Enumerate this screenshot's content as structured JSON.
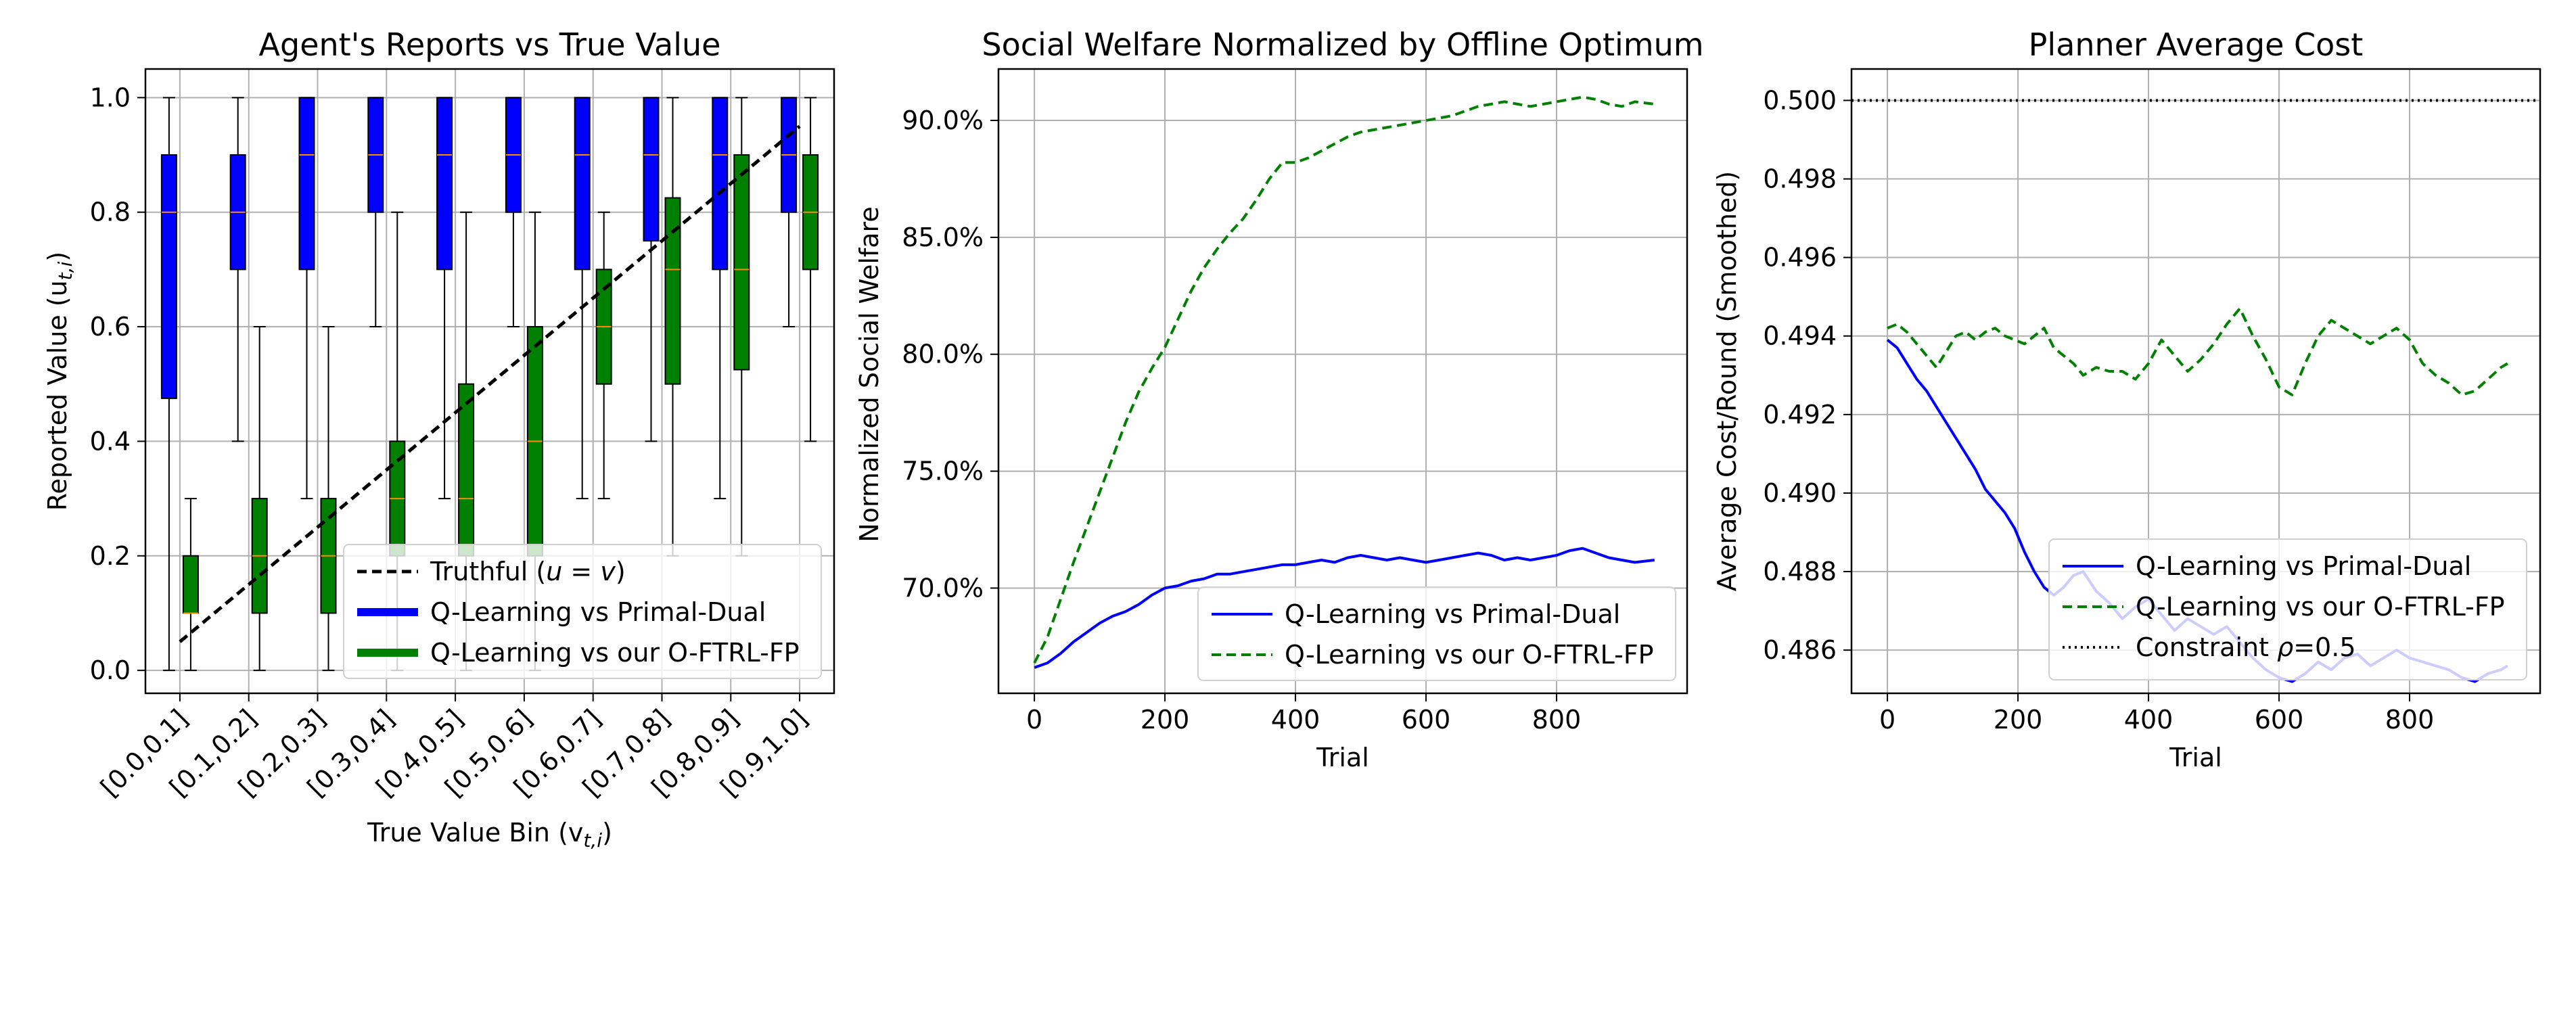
{
  "colors": {
    "blue": "#0000ff",
    "green": "#008000",
    "median": "#ff8c00",
    "truthful": "#000000",
    "grid": "#b0b0b0"
  },
  "chart_data": [
    {
      "type": "box",
      "title": "Agent's Reports vs True Value",
      "xlabel": "True Value Bin (v",
      "xlabel_sub": "t,i",
      "xlabel_end": ")",
      "ylabel": "Reported Value (u",
      "ylabel_sub": "t,i",
      "ylabel_end": ")",
      "ylim": [
        -0.04,
        1.05
      ],
      "yticks": [
        0.0,
        0.2,
        0.4,
        0.6,
        0.8,
        1.0
      ],
      "ytick_labels": [
        "0.0",
        "0.2",
        "0.4",
        "0.6",
        "0.8",
        "1.0"
      ],
      "categories": [
        "[0.0,0.1]",
        "[0.1,0.2]",
        "[0.2,0.3]",
        "[0.3,0.4]",
        "[0.4,0.5]",
        "[0.5,0.6]",
        "[0.6,0.7]",
        "[0.7,0.8]",
        "[0.8,0.9]",
        "[0.9,1.0]"
      ],
      "grid": true,
      "legend_position": "lower right",
      "legend": [
        {
          "label": "Truthful (",
          "label_math": "u = v",
          "label_end": ")",
          "style": "dashed-black"
        },
        {
          "label": "Q-Learning vs Primal-Dual",
          "style": "solid-blue"
        },
        {
          "label": "Q-Learning vs our O-FTRL-FP",
          "style": "solid-green"
        }
      ],
      "truthful_line": {
        "x": [
          0.05,
          0.95
        ],
        "y": [
          0.05,
          0.95
        ]
      },
      "series": [
        {
          "name": "Q-Learning vs Primal-Dual",
          "color": "#0000ff",
          "boxes": [
            {
              "whislo": 0.0,
              "q1": 0.475,
              "med": 0.8,
              "q3": 0.9,
              "whishi": 1.0
            },
            {
              "whislo": 0.4,
              "q1": 0.7,
              "med": 0.8,
              "q3": 0.9,
              "whishi": 1.0
            },
            {
              "whislo": 0.3,
              "q1": 0.7,
              "med": 0.9,
              "q3": 1.0,
              "whishi": 1.0
            },
            {
              "whislo": 0.6,
              "q1": 0.8,
              "med": 0.9,
              "q3": 1.0,
              "whishi": 1.0
            },
            {
              "whislo": 0.3,
              "q1": 0.7,
              "med": 0.9,
              "q3": 1.0,
              "whishi": 1.0
            },
            {
              "whislo": 0.6,
              "q1": 0.8,
              "med": 0.9,
              "q3": 1.0,
              "whishi": 1.0
            },
            {
              "whislo": 0.3,
              "q1": 0.7,
              "med": 0.9,
              "q3": 1.0,
              "whishi": 1.0
            },
            {
              "whislo": 0.4,
              "q1": 0.75,
              "med": 0.9,
              "q3": 1.0,
              "whishi": 1.0
            },
            {
              "whislo": 0.3,
              "q1": 0.7,
              "med": 0.9,
              "q3": 1.0,
              "whishi": 1.0
            },
            {
              "whislo": 0.6,
              "q1": 0.8,
              "med": 0.9,
              "q3": 1.0,
              "whishi": 1.0
            }
          ]
        },
        {
          "name": "Q-Learning vs our O-FTRL-FP",
          "color": "#008000",
          "boxes": [
            {
              "whislo": 0.0,
              "q1": 0.1,
              "med": 0.1,
              "q3": 0.2,
              "whishi": 0.3
            },
            {
              "whislo": 0.0,
              "q1": 0.1,
              "med": 0.2,
              "q3": 0.3,
              "whishi": 0.6
            },
            {
              "whislo": 0.0,
              "q1": 0.1,
              "med": 0.2,
              "q3": 0.3,
              "whishi": 0.6
            },
            {
              "whislo": 0.0,
              "q1": 0.2,
              "med": 0.3,
              "q3": 0.4,
              "whishi": 0.8
            },
            {
              "whislo": 0.0,
              "q1": 0.2,
              "med": 0.3,
              "q3": 0.5,
              "whishi": 0.8
            },
            {
              "whislo": 0.0,
              "q1": 0.2,
              "med": 0.4,
              "q3": 0.6,
              "whishi": 0.8
            },
            {
              "whislo": 0.3,
              "q1": 0.5,
              "med": 0.6,
              "q3": 0.7,
              "whishi": 0.8
            },
            {
              "whislo": 0.2,
              "q1": 0.5,
              "med": 0.7,
              "q3": 0.825,
              "whishi": 1.0
            },
            {
              "whislo": 0.2,
              "q1": 0.525,
              "med": 0.7,
              "q3": 0.9,
              "whishi": 1.0
            },
            {
              "whislo": 0.4,
              "q1": 0.7,
              "med": 0.8,
              "q3": 0.9,
              "whishi": 1.0
            }
          ]
        }
      ]
    },
    {
      "type": "line",
      "title": "Social Welfare Normalized by Offline Optimum",
      "xlabel": "Trial",
      "ylabel": "Normalized Social Welfare",
      "xlim": [
        -55,
        1000
      ],
      "ylim": [
        0.655,
        0.922
      ],
      "xticks": [
        0,
        200,
        400,
        600,
        800
      ],
      "yticks": [
        0.7,
        0.75,
        0.8,
        0.85,
        0.9
      ],
      "ytick_labels": [
        "70.0%",
        "75.0%",
        "80.0%",
        "85.0%",
        "90.0%"
      ],
      "grid": true,
      "legend_position": "lower right",
      "series": [
        {
          "name": "Q-Learning vs Primal-Dual",
          "style": "solid",
          "color": "#0000ff",
          "x": [
            0,
            20,
            40,
            60,
            80,
            100,
            120,
            140,
            160,
            180,
            200,
            220,
            240,
            260,
            280,
            300,
            320,
            340,
            360,
            380,
            400,
            420,
            440,
            460,
            480,
            500,
            520,
            540,
            560,
            580,
            600,
            620,
            640,
            660,
            680,
            700,
            720,
            740,
            760,
            780,
            800,
            820,
            840,
            860,
            880,
            900,
            920,
            950
          ],
          "y": [
            0.666,
            0.668,
            0.672,
            0.677,
            0.681,
            0.685,
            0.688,
            0.69,
            0.693,
            0.697,
            0.7,
            0.701,
            0.703,
            0.704,
            0.706,
            0.706,
            0.707,
            0.708,
            0.709,
            0.71,
            0.71,
            0.711,
            0.712,
            0.711,
            0.713,
            0.714,
            0.713,
            0.712,
            0.713,
            0.712,
            0.711,
            0.712,
            0.713,
            0.714,
            0.715,
            0.714,
            0.712,
            0.713,
            0.712,
            0.713,
            0.714,
            0.716,
            0.717,
            0.715,
            0.713,
            0.712,
            0.711,
            0.712
          ]
        },
        {
          "name": "Q-Learning vs our O-FTRL-FP",
          "style": "dashed",
          "color": "#008000",
          "x": [
            0,
            20,
            40,
            60,
            80,
            100,
            120,
            140,
            160,
            180,
            200,
            220,
            240,
            260,
            280,
            300,
            320,
            340,
            360,
            380,
            400,
            420,
            440,
            460,
            480,
            500,
            520,
            540,
            560,
            580,
            600,
            620,
            640,
            660,
            680,
            700,
            720,
            740,
            760,
            780,
            800,
            820,
            840,
            860,
            880,
            900,
            920,
            950
          ],
          "y": [
            0.668,
            0.679,
            0.695,
            0.711,
            0.726,
            0.741,
            0.756,
            0.771,
            0.784,
            0.794,
            0.803,
            0.815,
            0.827,
            0.837,
            0.845,
            0.852,
            0.858,
            0.866,
            0.875,
            0.882,
            0.882,
            0.884,
            0.887,
            0.89,
            0.893,
            0.895,
            0.896,
            0.897,
            0.898,
            0.899,
            0.9,
            0.901,
            0.902,
            0.904,
            0.906,
            0.907,
            0.908,
            0.907,
            0.906,
            0.907,
            0.908,
            0.909,
            0.91,
            0.909,
            0.907,
            0.906,
            0.908,
            0.907
          ]
        }
      ]
    },
    {
      "type": "line",
      "title": "Planner Average Cost",
      "xlabel": "Trial",
      "ylabel": "Average Cost/Round (Smoothed)",
      "xlim": [
        -55,
        1000
      ],
      "ylim": [
        0.4849,
        0.5008
      ],
      "xticks": [
        0,
        200,
        400,
        600,
        800
      ],
      "yticks": [
        0.486,
        0.488,
        0.49,
        0.492,
        0.494,
        0.496,
        0.498,
        0.5
      ],
      "ytick_labels": [
        "0.486",
        "0.488",
        "0.490",
        "0.492",
        "0.494",
        "0.496",
        "0.498",
        "0.500"
      ],
      "grid": true,
      "legend_position": "lower right",
      "series": [
        {
          "name": "Q-Learning vs Primal-Dual",
          "style": "solid",
          "color": "#0000ff",
          "x": [
            0,
            15,
            30,
            45,
            60,
            75,
            90,
            105,
            120,
            135,
            150,
            165,
            180,
            195,
            210,
            225,
            240,
            255,
            270,
            285,
            300,
            320,
            340,
            360,
            380,
            400,
            420,
            440,
            460,
            480,
            500,
            520,
            540,
            560,
            580,
            600,
            620,
            640,
            660,
            680,
            700,
            720,
            740,
            760,
            780,
            800,
            820,
            840,
            860,
            880,
            900,
            920,
            940,
            950
          ],
          "y": [
            0.4939,
            0.4937,
            0.4933,
            0.4929,
            0.4926,
            0.4922,
            0.4918,
            0.4914,
            0.491,
            0.4906,
            0.4901,
            0.4898,
            0.4895,
            0.4891,
            0.4885,
            0.488,
            0.4876,
            0.4874,
            0.4876,
            0.4879,
            0.488,
            0.4875,
            0.4872,
            0.4868,
            0.4871,
            0.4873,
            0.4869,
            0.4865,
            0.4868,
            0.4866,
            0.4864,
            0.4866,
            0.4862,
            0.4858,
            0.4855,
            0.4853,
            0.4852,
            0.4854,
            0.4857,
            0.4855,
            0.4858,
            0.4859,
            0.4856,
            0.4858,
            0.486,
            0.4858,
            0.4857,
            0.4856,
            0.4855,
            0.4853,
            0.4852,
            0.4854,
            0.4855,
            0.4856
          ]
        },
        {
          "name": "Q-Learning vs our O-FTRL-FP",
          "style": "dashed",
          "color": "#008000",
          "x": [
            0,
            15,
            30,
            45,
            60,
            75,
            90,
            105,
            120,
            135,
            150,
            165,
            180,
            195,
            210,
            225,
            240,
            255,
            270,
            285,
            300,
            320,
            340,
            360,
            380,
            400,
            420,
            440,
            460,
            480,
            500,
            520,
            540,
            560,
            580,
            600,
            620,
            640,
            660,
            680,
            700,
            720,
            740,
            760,
            780,
            800,
            820,
            840,
            860,
            880,
            900,
            920,
            940,
            950
          ],
          "y": [
            0.4942,
            0.4943,
            0.4941,
            0.4938,
            0.4935,
            0.4932,
            0.4936,
            0.494,
            0.4941,
            0.4939,
            0.4941,
            0.4942,
            0.494,
            0.4939,
            0.4938,
            0.494,
            0.4942,
            0.4937,
            0.4935,
            0.4933,
            0.493,
            0.4932,
            0.4931,
            0.4931,
            0.4929,
            0.4933,
            0.4939,
            0.4935,
            0.4931,
            0.4934,
            0.4938,
            0.4943,
            0.4947,
            0.494,
            0.4934,
            0.4927,
            0.4925,
            0.4933,
            0.494,
            0.4944,
            0.4942,
            0.494,
            0.4938,
            0.494,
            0.4942,
            0.4939,
            0.4933,
            0.493,
            0.4928,
            0.4925,
            0.4926,
            0.4929,
            0.4932,
            0.4933
          ]
        },
        {
          "name": "Constraint ρ=0.5",
          "style": "dotted",
          "color": "#000000",
          "y_constant": 0.5
        }
      ],
      "legend": [
        {
          "label": "Q-Learning vs Primal-Dual",
          "style": "solid-blue"
        },
        {
          "label": "Q-Learning vs our O-FTRL-FP",
          "style": "dashed-green"
        },
        {
          "label": "Constraint ",
          "label_math": "ρ",
          "label_end": "=0.5",
          "style": "dotted-black"
        }
      ]
    }
  ]
}
